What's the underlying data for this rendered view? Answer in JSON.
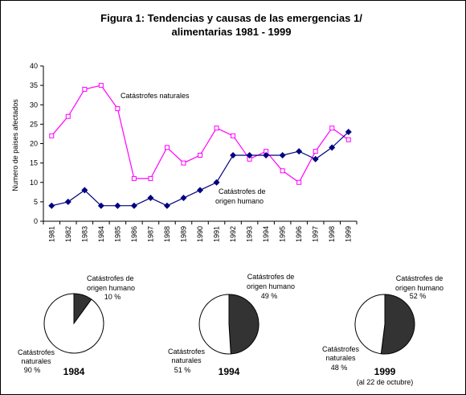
{
  "title_line1": "Figura 1: Tendencias y causas de las emergencias 1/",
  "title_line2": "alimentarias 1981 - 1999",
  "chart_data": [
    {
      "type": "line",
      "ylabel": "Numero de paises afectados",
      "ylim": [
        0,
        40
      ],
      "yticks": [
        0,
        5,
        10,
        15,
        20,
        25,
        30,
        35,
        40
      ],
      "categories": [
        "1981",
        "1982",
        "1983",
        "1984",
        "1985",
        "1986",
        "1987",
        "1988",
        "1989",
        "1990",
        "1991",
        "1992",
        "1993",
        "1994",
        "1995",
        "1996",
        "1997",
        "1998",
        "1999"
      ],
      "grid": false,
      "series": [
        {
          "name": "Catástrofes naturales",
          "color": "#ff00ff",
          "marker": "open-square",
          "values": [
            22,
            27,
            34,
            35,
            29,
            11,
            11,
            19,
            15,
            17,
            24,
            22,
            16,
            18,
            13,
            10,
            18,
            24,
            21
          ]
        },
        {
          "name": "Catástrofes de origen humano",
          "color": "#000080",
          "marker": "filled-diamond",
          "values": [
            4,
            5,
            8,
            4,
            4,
            4,
            6,
            4,
            6,
            8,
            10,
            17,
            17,
            17,
            17,
            18,
            16,
            19,
            23
          ]
        }
      ],
      "labels": {
        "natural": "Catástrofes naturales",
        "human_line1": "Catástrofes      de",
        "human_line2": "origen humano"
      }
    },
    {
      "type": "pie",
      "year": "1984",
      "slices": [
        {
          "label_line1": "Catástrofes de",
          "label_line2": "origen humano",
          "pct_text": "10 %",
          "value": 10,
          "color": "#333333"
        },
        {
          "label_line1": "Catástrofes",
          "label_line2": "naturales",
          "pct_text": "90 %",
          "value": 90,
          "color": "#ffffff"
        }
      ]
    },
    {
      "type": "pie",
      "year": "1994",
      "slices": [
        {
          "label_line1": "Catástrofes de",
          "label_line2": "origen humano",
          "pct_text": "49 %",
          "value": 49,
          "color": "#333333"
        },
        {
          "label_line1": "Catástrofes",
          "label_line2": "naturales",
          "pct_text": "51 %",
          "value": 51,
          "color": "#ffffff"
        }
      ]
    },
    {
      "type": "pie",
      "year": "1999",
      "note": "(al 22 de octubre)",
      "slices": [
        {
          "label_line1": "Catástrofes de",
          "label_line2": "origen humano",
          "pct_text": "52 %",
          "value": 52,
          "color": "#333333"
        },
        {
          "label_line1": "Catástrofes",
          "label_line2": "naturales",
          "pct_text": "48 %",
          "value": 48,
          "color": "#ffffff"
        }
      ]
    }
  ]
}
